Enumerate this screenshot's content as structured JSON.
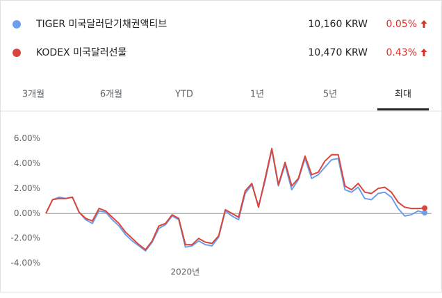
{
  "chart_data": {
    "type": "line",
    "series": [
      {
        "name": "TIGER 미국달러단기채권액티브",
        "color": "#6d9eeb",
        "price": "10,160 KRW",
        "change": "0.05%",
        "values": [
          0,
          1.1,
          1.3,
          1.2,
          1.3,
          0.1,
          -0.5,
          -0.8,
          0.2,
          0.1,
          -0.5,
          -1.0,
          -1.7,
          -2.2,
          -2.6,
          -3.0,
          -2.3,
          -1.2,
          -0.9,
          -0.2,
          -0.5,
          -2.7,
          -2.6,
          -2.2,
          -2.5,
          -2.6,
          -1.9,
          0.2,
          -0.2,
          -0.5,
          1.6,
          2.3,
          0.6,
          2.6,
          5.1,
          2.2,
          3.9,
          1.9,
          2.7,
          4.4,
          2.8,
          3.1,
          3.7,
          4.3,
          4.4,
          1.9,
          1.7,
          2.1,
          1.2,
          1.1,
          1.6,
          1.7,
          1.3,
          0.4,
          -0.2,
          -0.1,
          0.2,
          0.05
        ]
      },
      {
        "name": "KODEX 미국달러선물",
        "color": "#d8453b",
        "price": "10,470 KRW",
        "change": "0.43%",
        "values": [
          0,
          1.1,
          1.2,
          1.2,
          1.3,
          0.1,
          -0.4,
          -0.6,
          0.4,
          0.2,
          -0.3,
          -0.8,
          -1.5,
          -2.0,
          -2.5,
          -2.9,
          -2.2,
          -1.0,
          -0.8,
          -0.1,
          -0.4,
          -2.5,
          -2.5,
          -2.0,
          -2.3,
          -2.4,
          -1.8,
          0.3,
          0,
          -0.3,
          1.8,
          2.4,
          0.5,
          2.8,
          5.2,
          2.3,
          4.1,
          2.2,
          2.8,
          4.6,
          3.1,
          3.3,
          4.2,
          4.7,
          4.7,
          2.2,
          1.9,
          2.4,
          1.7,
          1.6,
          2.0,
          2.1,
          1.7,
          0.9,
          0.5,
          0.4,
          0.4,
          0.43
        ]
      }
    ],
    "categories": [
      null,
      null,
      null,
      null,
      null,
      null,
      null,
      null,
      null,
      null,
      null,
      null,
      null,
      null,
      null,
      null,
      null,
      null,
      null,
      null,
      null,
      null,
      "2020년",
      null,
      null,
      null,
      null,
      null,
      null,
      null,
      null,
      null,
      null,
      null,
      null,
      null,
      null,
      null,
      null,
      null,
      null,
      null,
      null,
      null,
      null,
      null,
      null,
      null,
      null,
      null,
      null,
      null,
      null,
      null,
      null,
      null,
      null,
      null
    ],
    "ylim": [
      -4.6,
      6.8
    ],
    "yticks": [
      {
        "value": 6,
        "label": "6.00%"
      },
      {
        "value": 4,
        "label": "4.00%"
      },
      {
        "value": 2,
        "label": "2.00%"
      },
      {
        "value": 0,
        "label": "0.00%"
      },
      {
        "value": -2,
        "label": "-2.00%"
      },
      {
        "value": -4,
        "label": "-4.00%"
      }
    ]
  },
  "tabs": [
    "3개월",
    "6개월",
    "YTD",
    "1년",
    "5년",
    "최대"
  ],
  "selected_tab": 5
}
